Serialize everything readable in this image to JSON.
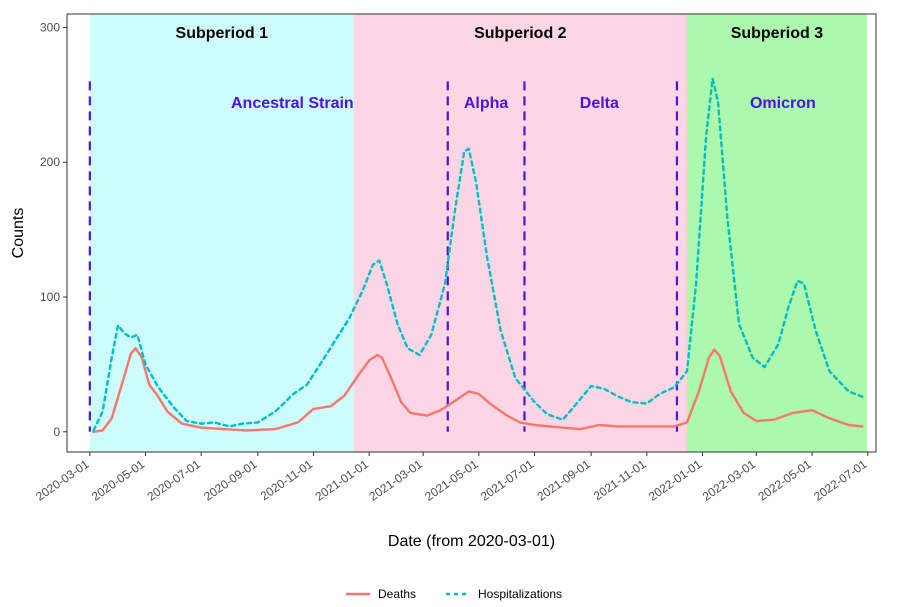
{
  "chart_data": {
    "type": "line",
    "xlabel": "Date (from 2020-03-01)",
    "ylabel": "Counts",
    "ylim": [
      -15,
      310
    ],
    "y_ticks": [
      0,
      100,
      200,
      300
    ],
    "x_ticks": [
      "2020-03-01",
      "2020-05-01",
      "2020-07-01",
      "2020-09-01",
      "2020-11-01",
      "2021-01-01",
      "2021-03-01",
      "2021-05-01",
      "2021-07-01",
      "2021-09-01",
      "2021-11-01",
      "2022-01-01",
      "2022-03-01",
      "2022-05-01",
      "2022-07-01"
    ],
    "xlim": [
      "2020-02-05",
      "2022-07-10"
    ],
    "grid": false,
    "legend_position": "bottom",
    "subperiods": [
      {
        "label": "Subperiod 1",
        "start": "2020-03-01",
        "end": "2020-12-15",
        "color": "#ccfcfc"
      },
      {
        "label": "Subperiod 2",
        "start": "2020-12-15",
        "end": "2021-12-15",
        "color": "#fcd6e4"
      },
      {
        "label": "Subperiod 3",
        "start": "2021-12-15",
        "end": "2022-06-30",
        "color": "#acf8ac"
      }
    ],
    "variant_boundaries": [
      "2020-03-01",
      "2021-03-28",
      "2021-06-20",
      "2021-12-04"
    ],
    "variants": [
      {
        "label": "Ancestral Strain",
        "anchor": "end",
        "date": "2020-12-15"
      },
      {
        "label": "Alpha",
        "anchor": "middle",
        "date": "2021-05-09"
      },
      {
        "label": "Delta",
        "anchor": "middle",
        "date": "2021-09-10"
      },
      {
        "label": "Omicron",
        "anchor": "middle",
        "date": "2022-03-30"
      }
    ],
    "series": [
      {
        "name": "Deaths",
        "color": "#f8766d",
        "dash": "solid",
        "points": [
          [
            "2020-03-05",
            0
          ],
          [
            "2020-03-15",
            1
          ],
          [
            "2020-03-25",
            10
          ],
          [
            "2020-04-05",
            35
          ],
          [
            "2020-04-15",
            58
          ],
          [
            "2020-04-20",
            62
          ],
          [
            "2020-04-27",
            55
          ],
          [
            "2020-05-05",
            35
          ],
          [
            "2020-05-15",
            26
          ],
          [
            "2020-05-25",
            15
          ],
          [
            "2020-06-10",
            6
          ],
          [
            "2020-07-01",
            3
          ],
          [
            "2020-07-25",
            2
          ],
          [
            "2020-08-20",
            1
          ],
          [
            "2020-09-20",
            2
          ],
          [
            "2020-10-15",
            7
          ],
          [
            "2020-11-01",
            17
          ],
          [
            "2020-11-20",
            19
          ],
          [
            "2020-12-05",
            27
          ],
          [
            "2020-12-20",
            42
          ],
          [
            "2021-01-01",
            53
          ],
          [
            "2021-01-10",
            57
          ],
          [
            "2021-01-15",
            55
          ],
          [
            "2021-01-25",
            40
          ],
          [
            "2021-02-05",
            22
          ],
          [
            "2021-02-15",
            14
          ],
          [
            "2021-03-05",
            12
          ],
          [
            "2021-03-20",
            16
          ],
          [
            "2021-04-05",
            23
          ],
          [
            "2021-04-20",
            30
          ],
          [
            "2021-05-01",
            28
          ],
          [
            "2021-05-15",
            20
          ],
          [
            "2021-06-01",
            12
          ],
          [
            "2021-06-15",
            7
          ],
          [
            "2021-07-01",
            5
          ],
          [
            "2021-08-01",
            3
          ],
          [
            "2021-08-20",
            2
          ],
          [
            "2021-09-10",
            5
          ],
          [
            "2021-10-01",
            4
          ],
          [
            "2021-11-01",
            4
          ],
          [
            "2021-12-01",
            4
          ],
          [
            "2021-12-15",
            7
          ],
          [
            "2021-12-28",
            30
          ],
          [
            "2022-01-08",
            55
          ],
          [
            "2022-01-14",
            61
          ],
          [
            "2022-01-20",
            56
          ],
          [
            "2022-02-01",
            30
          ],
          [
            "2022-02-15",
            14
          ],
          [
            "2022-03-01",
            8
          ],
          [
            "2022-03-20",
            9
          ],
          [
            "2022-04-10",
            14
          ],
          [
            "2022-05-01",
            16
          ],
          [
            "2022-05-20",
            10
          ],
          [
            "2022-06-10",
            5
          ],
          [
            "2022-06-25",
            4
          ]
        ]
      },
      {
        "name": "Hospitalizations",
        "color": "#00bfc4",
        "dash": "dotted",
        "points": [
          [
            "2020-03-05",
            1
          ],
          [
            "2020-03-15",
            15
          ],
          [
            "2020-03-25",
            55
          ],
          [
            "2020-04-01",
            79
          ],
          [
            "2020-04-08",
            73
          ],
          [
            "2020-04-15",
            70
          ],
          [
            "2020-04-22",
            72
          ],
          [
            "2020-05-01",
            50
          ],
          [
            "2020-05-15",
            33
          ],
          [
            "2020-06-01",
            18
          ],
          [
            "2020-06-15",
            8
          ],
          [
            "2020-07-01",
            6
          ],
          [
            "2020-07-15",
            7
          ],
          [
            "2020-08-01",
            4
          ],
          [
            "2020-08-15",
            6
          ],
          [
            "2020-09-01",
            7
          ],
          [
            "2020-09-20",
            15
          ],
          [
            "2020-10-10",
            28
          ],
          [
            "2020-10-25",
            35
          ],
          [
            "2020-11-10",
            52
          ],
          [
            "2020-11-25",
            68
          ],
          [
            "2020-12-10",
            84
          ],
          [
            "2020-12-25",
            105
          ],
          [
            "2021-01-05",
            124
          ],
          [
            "2021-01-12",
            127
          ],
          [
            "2021-01-20",
            110
          ],
          [
            "2021-02-01",
            80
          ],
          [
            "2021-02-12",
            62
          ],
          [
            "2021-02-25",
            57
          ],
          [
            "2021-03-10",
            72
          ],
          [
            "2021-03-25",
            110
          ],
          [
            "2021-04-05",
            165
          ],
          [
            "2021-04-15",
            208
          ],
          [
            "2021-04-20",
            210
          ],
          [
            "2021-04-28",
            185
          ],
          [
            "2021-05-10",
            130
          ],
          [
            "2021-05-25",
            75
          ],
          [
            "2021-06-10",
            40
          ],
          [
            "2021-07-01",
            22
          ],
          [
            "2021-07-15",
            13
          ],
          [
            "2021-08-01",
            9
          ],
          [
            "2021-08-15",
            20
          ],
          [
            "2021-09-01",
            34
          ],
          [
            "2021-09-15",
            32
          ],
          [
            "2021-10-01",
            26
          ],
          [
            "2021-10-15",
            22
          ],
          [
            "2021-11-01",
            21
          ],
          [
            "2021-11-15",
            28
          ],
          [
            "2021-12-01",
            33
          ],
          [
            "2021-12-15",
            45
          ],
          [
            "2021-12-25",
            110
          ],
          [
            "2022-01-05",
            220
          ],
          [
            "2022-01-12",
            262
          ],
          [
            "2022-01-18",
            245
          ],
          [
            "2022-01-28",
            160
          ],
          [
            "2022-02-10",
            80
          ],
          [
            "2022-02-25",
            55
          ],
          [
            "2022-03-10",
            48
          ],
          [
            "2022-03-25",
            65
          ],
          [
            "2022-04-05",
            92
          ],
          [
            "2022-04-15",
            112
          ],
          [
            "2022-04-22",
            110
          ],
          [
            "2022-05-05",
            75
          ],
          [
            "2022-05-20",
            45
          ],
          [
            "2022-06-10",
            30
          ],
          [
            "2022-06-25",
            26
          ]
        ]
      }
    ],
    "legend": [
      "Deaths",
      "Hospitalizations"
    ]
  }
}
